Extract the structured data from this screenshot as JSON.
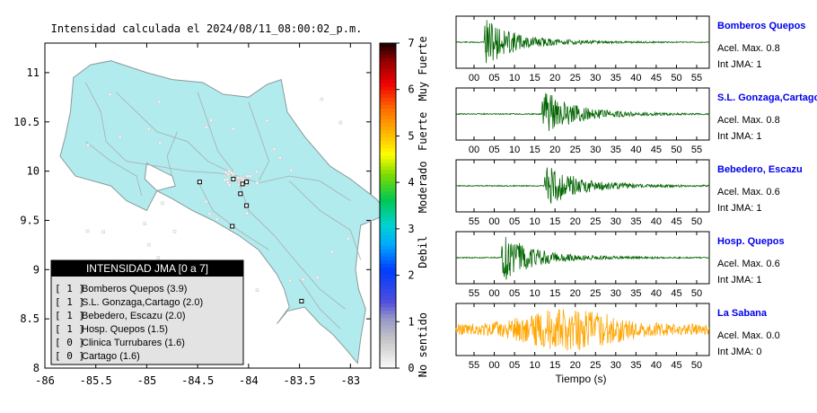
{
  "title": "Intensidad calculada el 2024/08/11_08:00:02_p.m.",
  "map": {
    "xticks": [
      "-86",
      "-85.5",
      "-85",
      "-84.5",
      "-84",
      "-83.5",
      "-83"
    ],
    "yticks": [
      "11",
      "10.5",
      "10",
      "9.5",
      "9",
      "8.5",
      "8"
    ],
    "land_color": "#b2ebee"
  },
  "legend": {
    "title": "INTENSIDAD JMA [0 a 7]",
    "items": [
      {
        "level": "[ 1 ]",
        "name": "Bomberos Quepos (3.9)"
      },
      {
        "level": "[ 1 ]",
        "name": "S.L. Gonzaga,Cartago (2.0)"
      },
      {
        "level": "[ 1 ]",
        "name": "Bebedero, Escazu (2.0)"
      },
      {
        "level": "[ 1 ]",
        "name": "Hosp. Quepos (1.5)"
      },
      {
        "level": "[ 0 ]",
        "name": "Clinica Turrubares (1.6)"
      },
      {
        "level": "[ 0 ]",
        "name": "Cartago (1.6)"
      }
    ]
  },
  "colorbar": {
    "ticks": [
      "0",
      "1",
      "2",
      "3",
      "4",
      "5",
      "6",
      "7"
    ],
    "labels": [
      "No sentido",
      "Debil",
      "Moderado",
      "Fuerte",
      "Muy Fuerte"
    ]
  },
  "waveforms": {
    "xlabel": "Tiempo (s)",
    "panels": [
      {
        "station": "Bomberos Quepos",
        "accel": "Acel. Max. 0.8",
        "jma": "Int JMA: 1",
        "ticks": [
          "00",
          "05",
          "10",
          "15",
          "20",
          "25",
          "30",
          "35",
          "40",
          "45",
          "50",
          "55"
        ],
        "color": "#006400",
        "arrival": 0.11
      },
      {
        "station": "S.L. Gonzaga,Cartago",
        "accel": "Acel. Max. 0.8",
        "jma": "Int JMA: 1",
        "ticks": [
          "00",
          "05",
          "10",
          "15",
          "20",
          "25",
          "30",
          "35",
          "40",
          "45",
          "50",
          "55"
        ],
        "color": "#006400",
        "arrival": 0.34
      },
      {
        "station": "Bebedero, Escazu",
        "accel": "Acel. Max. 0.6",
        "jma": "Int JMA: 1",
        "ticks": [
          "55",
          "00",
          "05",
          "10",
          "15",
          "20",
          "25",
          "30",
          "35",
          "40",
          "45",
          "50"
        ],
        "color": "#006400",
        "arrival": 0.35
      },
      {
        "station": "Hosp. Quepos",
        "accel": "Acel. Max. 0.6",
        "jma": "Int JMA: 1",
        "ticks": [
          "55",
          "00",
          "05",
          "10",
          "15",
          "20",
          "25",
          "30",
          "35",
          "40",
          "45",
          "50"
        ],
        "color": "#006400",
        "arrival": 0.18
      },
      {
        "station": "La Sabana",
        "accel": "Acel. Max. 0.0",
        "jma": "Int JMA: 0",
        "ticks": [
          "55",
          "00",
          "05",
          "10",
          "15",
          "20",
          "25",
          "30",
          "35",
          "40",
          "45",
          "50"
        ],
        "color": "#ffa500",
        "arrival": 0.42
      }
    ]
  },
  "chart_data": {
    "type": "map+waveforms",
    "map_xlim": [
      -86,
      -82.8
    ],
    "map_ylim": [
      8,
      11.3
    ],
    "colorbar_range": [
      0,
      7
    ],
    "stations": [
      {
        "lon": -84.48,
        "lat": 9.89
      },
      {
        "lon": -84.15,
        "lat": 9.92
      },
      {
        "lon": -84.06,
        "lat": 9.87
      },
      {
        "lon": -84.02,
        "lat": 9.89
      },
      {
        "lon": -84.08,
        "lat": 9.77
      },
      {
        "lon": -84.02,
        "lat": 9.65
      },
      {
        "lon": -84.16,
        "lat": 9.44
      },
      {
        "lon": -83.48,
        "lat": 8.68
      }
    ]
  }
}
